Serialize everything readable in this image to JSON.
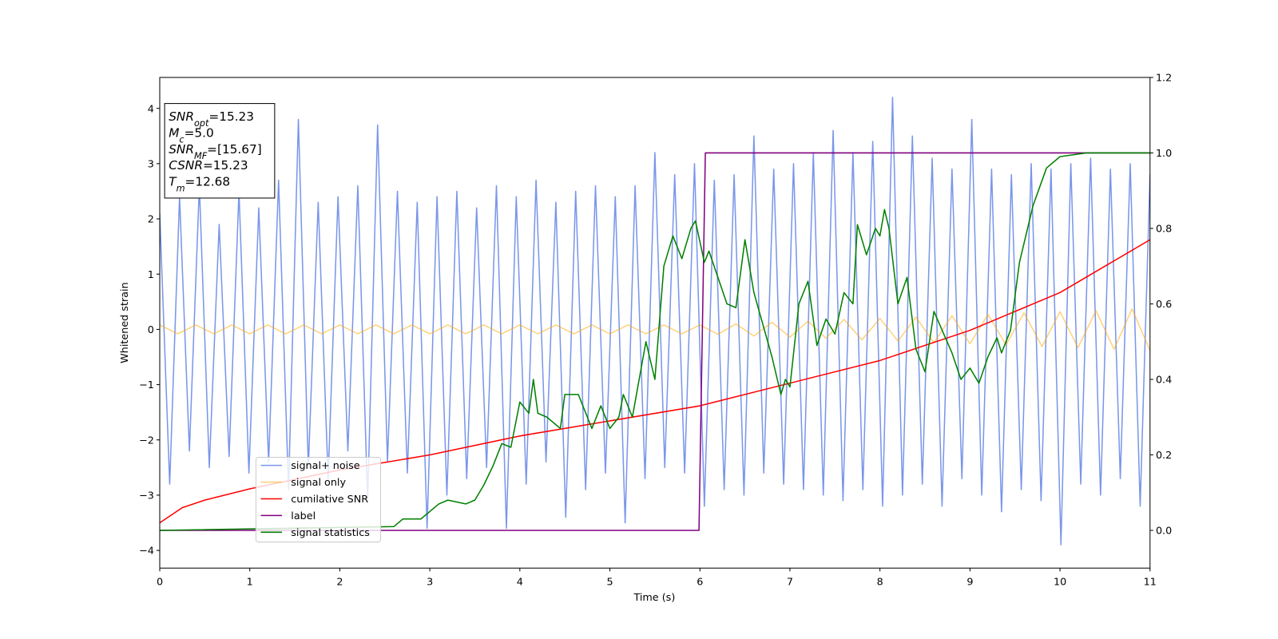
{
  "chart_data": {
    "type": "line",
    "xlabel": "Time (s)",
    "ylabel": "Whitened strain",
    "xlim": [
      0,
      11
    ],
    "xticks": [
      0,
      1,
      2,
      3,
      4,
      5,
      6,
      7,
      8,
      9,
      10,
      11
    ],
    "ylim": [
      -4.32,
      4.56
    ],
    "yticks": [
      {
        "value": -4,
        "label": "−4"
      },
      {
        "value": -3,
        "label": "−3"
      },
      {
        "value": -2,
        "label": "−2"
      },
      {
        "value": -1,
        "label": "−1"
      },
      0,
      1,
      2,
      3,
      4
    ],
    "y2lim": [
      -0.1,
      1.2
    ],
    "y2ticks": [
      {
        "value": 0,
        "label": "0.0"
      },
      {
        "value": 0.2,
        "label": "0.2"
      },
      {
        "value": 0.4,
        "label": "0.4"
      },
      {
        "value": 0.6,
        "label": "0.6"
      },
      {
        "value": 0.8,
        "label": "0.8"
      },
      {
        "value": 1.0,
        "label": "1.0"
      },
      {
        "value": 1.2,
        "label": "1.2"
      }
    ],
    "annotation": [
      {
        "label": "SNR",
        "sub": "opt",
        "text": "=15.23"
      },
      {
        "label": "M",
        "sub": "c",
        "text": "=5.0"
      },
      {
        "label": "SNR",
        "sub": "MF",
        "text": "=[15.67]"
      },
      {
        "label": "CSNR",
        "text": "=15.23"
      },
      {
        "label": "T",
        "sub": "m",
        "text": "=12.68"
      }
    ],
    "series": [
      {
        "name": "signal+ noise",
        "color": "#4169e1",
        "alpha": 0.7,
        "x": [
          0,
          0.11,
          0.22,
          0.33,
          0.44,
          0.55,
          0.66,
          0.77,
          0.88,
          0.99,
          1.1,
          1.21,
          1.32,
          1.43,
          1.54,
          1.65,
          1.76,
          1.87,
          1.98,
          2.09,
          2.2,
          2.31,
          2.42,
          2.53,
          2.64,
          2.75,
          2.86,
          2.97,
          3.08,
          3.19,
          3.3,
          3.41,
          3.52,
          3.63,
          3.74,
          3.85,
          3.96,
          4.07,
          4.18,
          4.29,
          4.4,
          4.51,
          4.62,
          4.73,
          4.84,
          4.95,
          5.06,
          5.17,
          5.28,
          5.39,
          5.5,
          5.61,
          5.72,
          5.83,
          5.94,
          6.05,
          6.16,
          6.27,
          6.38,
          6.49,
          6.6,
          6.71,
          6.82,
          6.93,
          7.04,
          7.15,
          7.26,
          7.37,
          7.48,
          7.59,
          7.7,
          7.81,
          7.92,
          8.03,
          8.14,
          8.25,
          8.36,
          8.47,
          8.58,
          8.69,
          8.8,
          8.91,
          9.02,
          9.13,
          9.24,
          9.35,
          9.46,
          9.57,
          9.68,
          9.79,
          9.9,
          10.01,
          10.12,
          10.23,
          10.34,
          10.45,
          10.56,
          10.67,
          10.78,
          10.89,
          11.0
        ],
        "values": [
          2.1,
          -2.8,
          2.4,
          -2.2,
          2.6,
          -2.5,
          1.9,
          -2.3,
          2.5,
          -2.6,
          2.2,
          -2.4,
          2.7,
          -2.9,
          3.8,
          -2.5,
          2.3,
          -2.7,
          2.4,
          -2.2,
          2.6,
          -3.1,
          3.7,
          -2.4,
          2.5,
          -2.6,
          2.3,
          -3.6,
          2.4,
          -3.0,
          2.5,
          -2.7,
          2.2,
          -2.5,
          2.6,
          -3.6,
          2.4,
          -2.8,
          2.7,
          -2.4,
          2.3,
          -3.4,
          2.5,
          -2.9,
          2.6,
          -2.6,
          2.4,
          -3.5,
          2.6,
          -2.7,
          3.2,
          -2.5,
          2.8,
          -2.6,
          3.0,
          -3.2,
          2.7,
          -2.9,
          2.8,
          -3.0,
          3.5,
          -2.6,
          2.9,
          -2.8,
          3.0,
          -2.9,
          3.2,
          -3.0,
          3.6,
          -3.1,
          3.2,
          -2.9,
          3.4,
          -3.2,
          4.2,
          -3.0,
          3.5,
          -2.8,
          3.1,
          -3.2,
          2.9,
          -2.7,
          3.8,
          -3.0,
          2.9,
          -3.3,
          2.8,
          -2.9,
          3.0,
          -3.1,
          2.9,
          -3.9,
          3.0,
          -2.8,
          3.1,
          -3.0,
          2.9,
          -2.7,
          3.0,
          -3.2,
          2.8
        ]
      },
      {
        "name": "signal only",
        "color": "#ffa500",
        "alpha": 0.5,
        "x": [
          0,
          0.2,
          0.4,
          0.6,
          0.8,
          1.0,
          1.2,
          1.4,
          1.6,
          1.8,
          2.0,
          2.2,
          2.4,
          2.6,
          2.8,
          3.0,
          3.2,
          3.4,
          3.6,
          3.8,
          4.0,
          4.2,
          4.4,
          4.6,
          4.8,
          5.0,
          5.2,
          5.4,
          5.6,
          5.8,
          6.0,
          6.2,
          6.4,
          6.6,
          6.8,
          7.0,
          7.2,
          7.4,
          7.6,
          7.8,
          8.0,
          8.2,
          8.4,
          8.6,
          8.8,
          9.0,
          9.2,
          9.4,
          9.6,
          9.8,
          10.0,
          10.2,
          10.4,
          10.6,
          10.8,
          11.0
        ],
        "values": [
          0.08,
          -0.08,
          0.08,
          -0.08,
          0.08,
          -0.08,
          0.08,
          -0.08,
          0.08,
          -0.08,
          0.08,
          -0.08,
          0.08,
          -0.08,
          0.08,
          -0.08,
          0.08,
          -0.08,
          0.08,
          -0.08,
          0.08,
          -0.08,
          0.08,
          -0.08,
          0.08,
          -0.08,
          0.08,
          -0.08,
          0.08,
          -0.08,
          0.08,
          -0.09,
          0.1,
          -0.12,
          0.13,
          -0.14,
          0.15,
          -0.16,
          0.18,
          -0.19,
          0.2,
          -0.21,
          0.22,
          -0.24,
          0.25,
          -0.26,
          0.27,
          -0.28,
          0.3,
          -0.31,
          0.32,
          -0.33,
          0.34,
          -0.36,
          0.37,
          -0.38
        ]
      },
      {
        "name": "cumilative SNR",
        "color": "#ff0000",
        "axis": "y2",
        "x": [
          0,
          0.25,
          0.5,
          1,
          2,
          3,
          4,
          5,
          6,
          7,
          8,
          9,
          10,
          10.5,
          11
        ],
        "values": [
          0.02,
          0.06,
          0.08,
          0.11,
          0.16,
          0.2,
          0.25,
          0.29,
          0.33,
          0.39,
          0.45,
          0.53,
          0.63,
          0.7,
          0.77
        ]
      },
      {
        "name": "label",
        "color": "#800080",
        "axis": "y2",
        "x": [
          0,
          5.99,
          6.06,
          11
        ],
        "values": [
          0,
          0,
          1,
          1
        ]
      },
      {
        "name": "signal statistics",
        "color": "#008000",
        "axis": "y2",
        "x": [
          0,
          2.6,
          2.7,
          2.9,
          3.0,
          3.1,
          3.2,
          3.4,
          3.5,
          3.6,
          3.7,
          3.8,
          3.9,
          4.0,
          4.1,
          4.15,
          4.2,
          4.3,
          4.45,
          4.5,
          4.65,
          4.8,
          4.9,
          5.0,
          5.1,
          5.15,
          5.25,
          5.4,
          5.5,
          5.6,
          5.7,
          5.8,
          5.9,
          5.95,
          6.05,
          6.1,
          6.3,
          6.4,
          6.5,
          6.6,
          6.8,
          6.9,
          6.95,
          7.0,
          7.1,
          7.2,
          7.3,
          7.4,
          7.5,
          7.6,
          7.7,
          7.75,
          7.85,
          7.95,
          8.0,
          8.05,
          8.1,
          8.2,
          8.3,
          8.4,
          8.5,
          8.6,
          8.8,
          8.9,
          9.0,
          9.1,
          9.2,
          9.3,
          9.35,
          9.45,
          9.55,
          9.7,
          9.85,
          10.0,
          10.3,
          11
        ],
        "values": [
          0,
          0.01,
          0.03,
          0.03,
          0.05,
          0.07,
          0.08,
          0.07,
          0.08,
          0.12,
          0.17,
          0.23,
          0.22,
          0.34,
          0.31,
          0.4,
          0.31,
          0.3,
          0.27,
          0.36,
          0.36,
          0.27,
          0.33,
          0.27,
          0.3,
          0.36,
          0.3,
          0.5,
          0.4,
          0.7,
          0.78,
          0.72,
          0.8,
          0.82,
          0.71,
          0.74,
          0.6,
          0.59,
          0.77,
          0.63,
          0.46,
          0.36,
          0.4,
          0.38,
          0.6,
          0.66,
          0.49,
          0.56,
          0.52,
          0.63,
          0.6,
          0.81,
          0.73,
          0.8,
          0.78,
          0.85,
          0.8,
          0.6,
          0.67,
          0.48,
          0.42,
          0.58,
          0.47,
          0.4,
          0.43,
          0.39,
          0.46,
          0.51,
          0.47,
          0.53,
          0.71,
          0.86,
          0.96,
          0.99,
          1.0,
          1.0
        ]
      }
    ]
  }
}
